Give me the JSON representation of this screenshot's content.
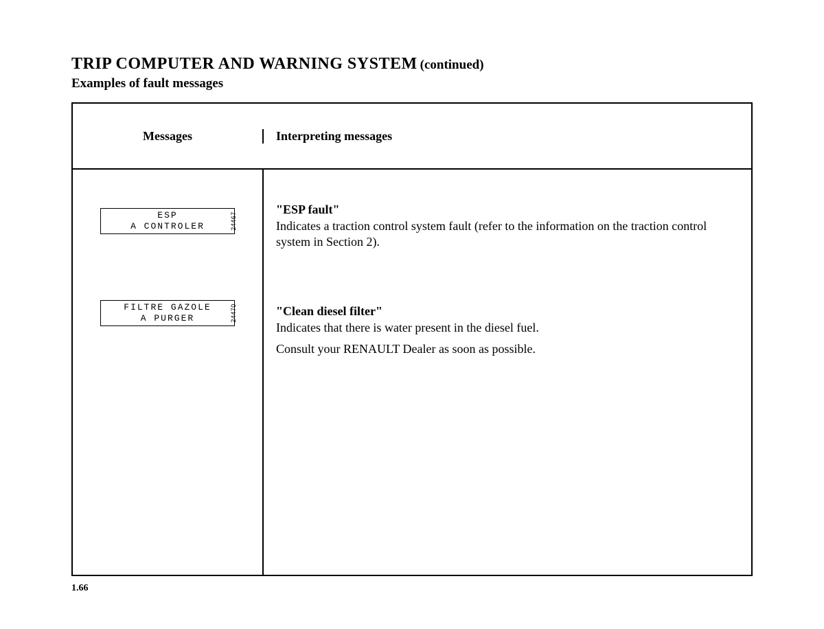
{
  "page": {
    "title_main": "TRIP COMPUTER AND WARNING SYSTEM",
    "title_cont": "(continued)",
    "subtitle": "Examples of fault messages",
    "page_number": "1.66"
  },
  "table": {
    "header_left": "Messages",
    "header_right": "Interpreting messages"
  },
  "messages": [
    {
      "lcd_line1": "ESP",
      "lcd_line2": "A CONTROLER",
      "img_ref": "24467",
      "title": "\"ESP fault\"",
      "body1": "Indicates a traction control system fault (refer to the information on the traction control system in Section 2)."
    },
    {
      "lcd_line1": "FILTRE GAZOLE",
      "lcd_line2": "A PURGER",
      "img_ref": "24470",
      "title": "\"Clean diesel filter\"",
      "body1": "Indicates that there is water present in the diesel fuel.",
      "body2": "Consult your RENAULT Dealer as soon as possible."
    }
  ]
}
